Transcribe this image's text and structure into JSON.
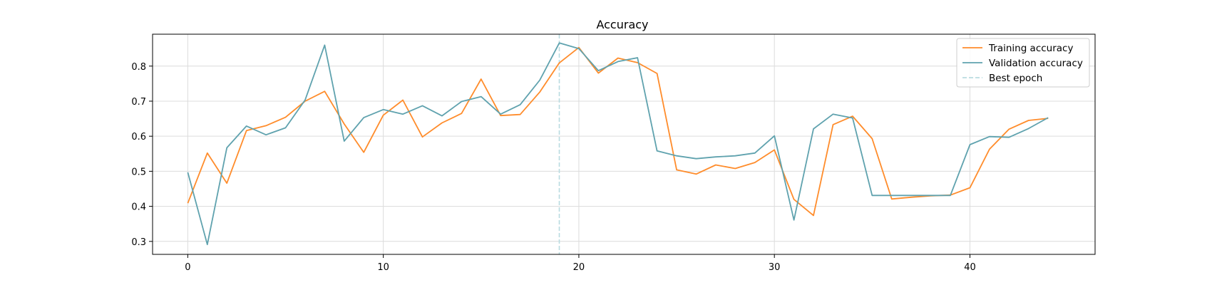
{
  "chart_data": {
    "type": "line",
    "title": "Accuracy",
    "xlabel": "",
    "ylabel": "",
    "xlim": [
      -1.8,
      46.4
    ],
    "ylim": [
      0.263,
      0.891
    ],
    "xticks": [
      0,
      10,
      20,
      30,
      40
    ],
    "yticks": [
      0.3,
      0.4,
      0.5,
      0.6,
      0.7,
      0.8
    ],
    "xtick_labels": [
      "0",
      "10",
      "20",
      "30",
      "40"
    ],
    "ytick_labels": [
      "0.3",
      "0.4",
      "0.5",
      "0.6",
      "0.7",
      "0.8"
    ],
    "grid": true,
    "legend_position": "top-right",
    "best_epoch": 19,
    "best_epoch_label": "Best epoch",
    "best_epoch_color": "#b9dbe0",
    "x": [
      0,
      1,
      2,
      3,
      4,
      5,
      6,
      7,
      8,
      9,
      10,
      11,
      12,
      13,
      14,
      15,
      16,
      17,
      18,
      19,
      20,
      21,
      22,
      23,
      24,
      25,
      26,
      27,
      28,
      29,
      30,
      31,
      32,
      33,
      34,
      35,
      36,
      37,
      38,
      39,
      40,
      41,
      42,
      43,
      44
    ],
    "series": [
      {
        "name": "Training accuracy",
        "color": "#ff8c2b",
        "values": [
          0.409,
          0.552,
          0.466,
          0.616,
          0.63,
          0.654,
          0.7,
          0.728,
          0.635,
          0.554,
          0.66,
          0.703,
          0.598,
          0.638,
          0.665,
          0.763,
          0.659,
          0.662,
          0.726,
          0.809,
          0.853,
          0.78,
          0.823,
          0.81,
          0.779,
          0.504,
          0.492,
          0.518,
          0.508,
          0.525,
          0.561,
          0.42,
          0.374,
          0.633,
          0.657,
          0.593,
          0.421,
          0.426,
          0.43,
          0.432,
          0.453,
          0.563,
          0.62,
          0.645,
          0.651
        ]
      },
      {
        "name": "Validation accuracy",
        "color": "#5fa2ae",
        "values": [
          0.497,
          0.291,
          0.567,
          0.629,
          0.604,
          0.624,
          0.703,
          0.86,
          0.586,
          0.653,
          0.676,
          0.663,
          0.687,
          0.658,
          0.699,
          0.713,
          0.663,
          0.69,
          0.76,
          0.866,
          0.85,
          0.787,
          0.813,
          0.824,
          0.558,
          0.544,
          0.536,
          0.541,
          0.544,
          0.552,
          0.601,
          0.361,
          0.621,
          0.663,
          0.652,
          0.431,
          0.431,
          0.431,
          0.431,
          0.431,
          0.576,
          0.599,
          0.597,
          0.622,
          0.653
        ]
      }
    ]
  }
}
